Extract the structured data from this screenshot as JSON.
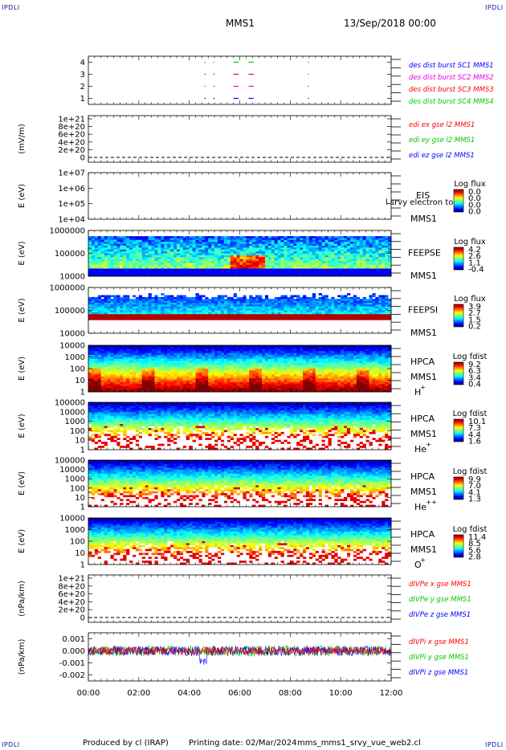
{
  "corner_marks": [
    "IPDLI",
    "IPDLI",
    "IPDLI",
    "IPDLI"
  ],
  "header": {
    "spacecraft": "MMS1",
    "date": "13/Sep/2018 00:00"
  },
  "footer": {
    "produced_by": "Produced by cl (IRAP)",
    "printing_date": "Printing date: 02/Mar/2024",
    "script": "mms_mms1_srvy_vue_web2.cl"
  },
  "chart_data": {
    "type": "multi-panel-timeseries",
    "x_range": [
      "00:00",
      "12:00"
    ],
    "x_ticks": [
      "00:00",
      "02:00",
      "04:00",
      "06:00",
      "08:00",
      "10:00",
      "12:00"
    ],
    "colors": {
      "red": "#ff0000",
      "green": "#00c800",
      "blue": "#0000ff",
      "magenta": "#e000e0",
      "black": "#000000"
    },
    "panels": [
      {
        "type": "scatter",
        "ylabel": "",
        "yticks": [
          "4",
          "3",
          "2",
          "1"
        ],
        "ylim": [
          0.5,
          4.5
        ],
        "legend": [
          {
            "label": "des dist burst SC1 MMS1",
            "color": "#0000ff"
          },
          {
            "label": "des dist burst SC2 MMS2",
            "color": "#e000e0"
          },
          {
            "label": "des dist burst SC3 MMS3",
            "color": "#ff0000"
          },
          {
            "label": "des dist burst SC4 MMS4",
            "color": "#00c800"
          }
        ],
        "bursts": [
          {
            "start_h": 4.6,
            "end_h": 4.65
          },
          {
            "start_h": 4.95,
            "end_h": 5.0
          },
          {
            "start_h": 5.75,
            "end_h": 5.95
          },
          {
            "start_h": 6.35,
            "end_h": 6.55
          },
          {
            "start_h": 8.7,
            "end_h": 8.74
          }
        ]
      },
      {
        "type": "line",
        "ylabel": "(mV/m)",
        "yticks": [
          "1e+21",
          "8e+20",
          "6e+20",
          "4e+20",
          "2e+20",
          "0"
        ],
        "ylim": [
          0,
          1e+21
        ],
        "legend": [
          {
            "label": "edi ex gse l2 MMS1",
            "color": "#ff0000"
          },
          {
            "label": "edi ey gse l2 MMS1",
            "color": "#00c800"
          },
          {
            "label": "edi ez gse l2 MMS1",
            "color": "#0000ff"
          }
        ]
      },
      {
        "type": "heatmap",
        "ylabel": "E (eV)",
        "yticks": [
          "1e+07",
          "1e+06",
          "1e+05",
          "1e+04"
        ],
        "instrument": "EIS",
        "spacecraft": "MMS1",
        "extra_label": "l srvy electron to",
        "colorbar_title": "Log flux",
        "colorbar_ticks": [
          "0.0",
          "0.0",
          "0.0",
          "0.0"
        ],
        "data_present": false
      },
      {
        "type": "heatmap",
        "ylabel": "E (eV)",
        "yticks": [
          "1000000",
          "100000",
          "10000"
        ],
        "instrument": "FEEPSE",
        "spacecraft": "MMS1",
        "colorbar_title": "Log flux",
        "colorbar_ticks": [
          "4.2",
          "2.6",
          "1.1",
          "-0.4"
        ]
      },
      {
        "type": "heatmap",
        "ylabel": "E (eV)",
        "yticks": [
          "1000000",
          "100000",
          "10000"
        ],
        "instrument": "FEEPSI",
        "spacecraft": "MMS1",
        "colorbar_title": "Log flux",
        "colorbar_ticks": [
          "3.9",
          "2.7",
          "1.5",
          "0.2"
        ]
      },
      {
        "type": "heatmap",
        "ylabel": "E (eV)",
        "yticks": [
          "10000",
          "1000",
          "100",
          "10",
          "1"
        ],
        "instrument": "HPCA",
        "spacecraft": "MMS1",
        "species": "H",
        "species_sup": "+",
        "colorbar_title": "Log fdist",
        "colorbar_ticks": [
          "9.2",
          "6.3",
          "3.4",
          "0.4"
        ]
      },
      {
        "type": "heatmap",
        "ylabel": "E (eV)",
        "yticks": [
          "100000",
          "10000",
          "1000",
          "100",
          "10",
          "1"
        ],
        "instrument": "HPCA",
        "spacecraft": "MMS1",
        "species": "He",
        "species_sup": "+",
        "colorbar_title": "Log fdist",
        "colorbar_ticks": [
          "10.1",
          "7.3",
          "4.4",
          "1.6"
        ]
      },
      {
        "type": "heatmap",
        "ylabel": "E (eV)",
        "yticks": [
          "100000",
          "10000",
          "1000",
          "100",
          "10",
          "1"
        ],
        "instrument": "HPCA",
        "spacecraft": "MMS1",
        "species": "He",
        "species_sup": "++",
        "colorbar_title": "Log fdist",
        "colorbar_ticks": [
          "9.9",
          "7.0",
          "4.1",
          "1.3"
        ]
      },
      {
        "type": "heatmap",
        "ylabel": "E (eV)",
        "yticks": [
          "10000",
          "1000",
          "100",
          "10",
          "1"
        ],
        "instrument": "HPCA",
        "spacecraft": "MMS1",
        "species": "O",
        "species_sup": "+",
        "colorbar_title": "Log fdist",
        "colorbar_ticks": [
          "11.4",
          "8.5",
          "5.6",
          "2.8"
        ]
      },
      {
        "type": "line",
        "ylabel": "(nPa/km)",
        "yticks": [
          "1e+21",
          "8e+20",
          "6e+20",
          "4e+20",
          "2e+20",
          "0"
        ],
        "ylim": [
          0,
          1e+21
        ],
        "legend": [
          {
            "label": "dIVPe x gse MMS1",
            "color": "#ff0000"
          },
          {
            "label": "dIVPe y gse MMS1",
            "color": "#00c800"
          },
          {
            "label": "dIVPe z gse MMS1",
            "color": "#0000ff"
          }
        ]
      },
      {
        "type": "line",
        "ylabel": "(nPa/km)",
        "yticks": [
          "0.001",
          "0.000",
          "-0.001",
          "-0.002"
        ],
        "ylim": [
          -0.0025,
          0.0015
        ],
        "legend": [
          {
            "label": "dIVPi x gse MMS1",
            "color": "#ff0000"
          },
          {
            "label": "dIVPi y gse MMS1",
            "color": "#00c800"
          },
          {
            "label": "dIVPi z gse MMS1",
            "color": "#0000ff"
          }
        ]
      }
    ]
  }
}
